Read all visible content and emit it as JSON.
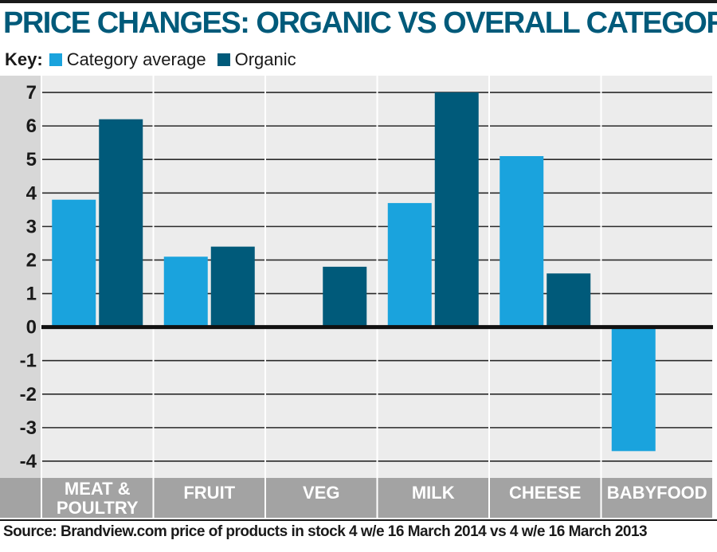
{
  "header": {
    "title": "PRICE CHANGES: ORGANIC VS OVERALL CATEGORY"
  },
  "key": {
    "label": "Key:",
    "items": [
      {
        "name": "Category average",
        "color": "#1aa3dd"
      },
      {
        "name": "Organic",
        "color": "#005a7a"
      }
    ]
  },
  "footer": {
    "source": "Source: Brandview.com price of products in stock 4 w/e 16 March 2014 vs 4 w/e 16 March 2013"
  },
  "chart_data": {
    "type": "bar",
    "categories": [
      "MEAT & POULTRY",
      "FRUIT",
      "VEG",
      "MILK",
      "CHEESE",
      "BABYFOOD"
    ],
    "category_lines": [
      [
        "MEAT &",
        "POULTRY"
      ],
      [
        "FRUIT"
      ],
      [
        "VEG"
      ],
      [
        "MILK"
      ],
      [
        "CHEESE"
      ],
      [
        "BABYFOOD"
      ]
    ],
    "series": [
      {
        "name": "Category average",
        "color": "#1aa3dd",
        "values": [
          3.8,
          2.1,
          0.05,
          3.7,
          5.1,
          -3.7
        ]
      },
      {
        "name": "Organic",
        "color": "#005a7a",
        "values": [
          6.2,
          2.4,
          1.8,
          7.0,
          1.6,
          0.05
        ]
      }
    ],
    "yticks": [
      7,
      6,
      5,
      4,
      3,
      2,
      1,
      0,
      -1,
      -2,
      -3,
      -4
    ],
    "ylim": [
      -4.5,
      7.5
    ],
    "grid": true,
    "legend": "top-left"
  }
}
